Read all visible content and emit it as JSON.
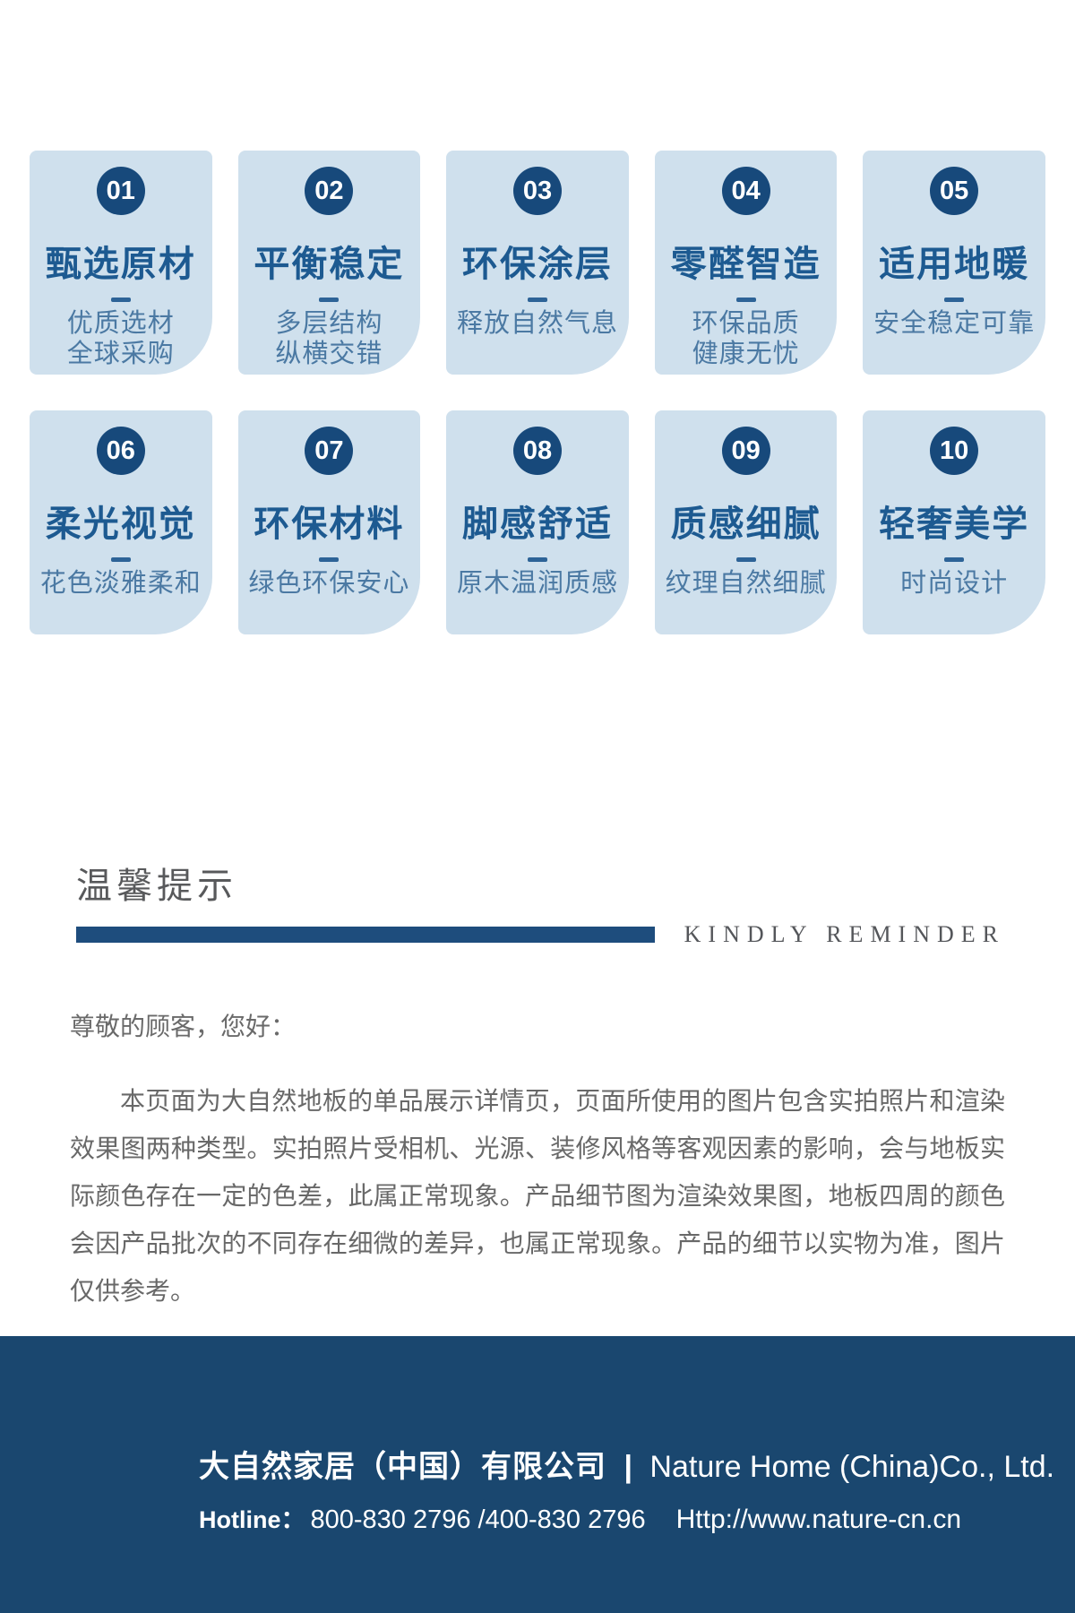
{
  "features": {
    "items": [
      {
        "number": "01",
        "title": "甄选原材",
        "lines": [
          "优质选材",
          "全球采购"
        ]
      },
      {
        "number": "02",
        "title": "平衡稳定",
        "lines": [
          "多层结构",
          "纵横交错"
        ]
      },
      {
        "number": "03",
        "title": "环保涂层",
        "lines": [
          "释放自然气息"
        ]
      },
      {
        "number": "04",
        "title": "零醛智造",
        "lines": [
          "环保品质",
          "健康无忧"
        ]
      },
      {
        "number": "05",
        "title": "适用地暖",
        "lines": [
          "安全稳定可靠"
        ]
      },
      {
        "number": "06",
        "title": "柔光视觉",
        "lines": [
          "花色淡雅柔和"
        ]
      },
      {
        "number": "07",
        "title": "环保材料",
        "lines": [
          "绿色环保安心"
        ]
      },
      {
        "number": "08",
        "title": "脚感舒适",
        "lines": [
          "原木温润质感"
        ]
      },
      {
        "number": "09",
        "title": "质感细腻",
        "lines": [
          "纹理自然细腻"
        ]
      },
      {
        "number": "10",
        "title": "轻奢美学",
        "lines": [
          "时尚设计"
        ]
      }
    ]
  },
  "reminder": {
    "title_cn": "温馨提示",
    "title_en": "KINDLY REMINDER",
    "greeting": "尊敬的顾客，您好：",
    "body": "本页面为大自然地板的单品展示详情页，页面所使用的图片包含实拍照片和渲染效果图两种类型。实拍照片受相机、光源、装修风格等客观因素的影响，会与地板实际颜色存在一定的色差，此属正常现象。产品细节图为渲染效果图，地板四周的颜色会因产品批次的不同存在细微的差异，也属正常现象。产品的细节以实物为准，图片仅供参考。"
  },
  "footer": {
    "company_cn": "大自然家居（中国）有限公司",
    "divider": "|",
    "company_en": "Nature Home (China)Co., Ltd.",
    "hotline_label": "Hotline：",
    "hotline_numbers": "800-830 2796 /400-830 2796",
    "website": "Http://www.nature-cn.cn"
  },
  "colors": {
    "card-bg": "#cfe0ed",
    "badge-bg": "#17497b",
    "title-color": "#1d5a91",
    "dash-color": "#2d6397",
    "sub-color": "#4b79a3",
    "bar-color": "#1e4d7d",
    "footer-bg": "#1a476f"
  }
}
